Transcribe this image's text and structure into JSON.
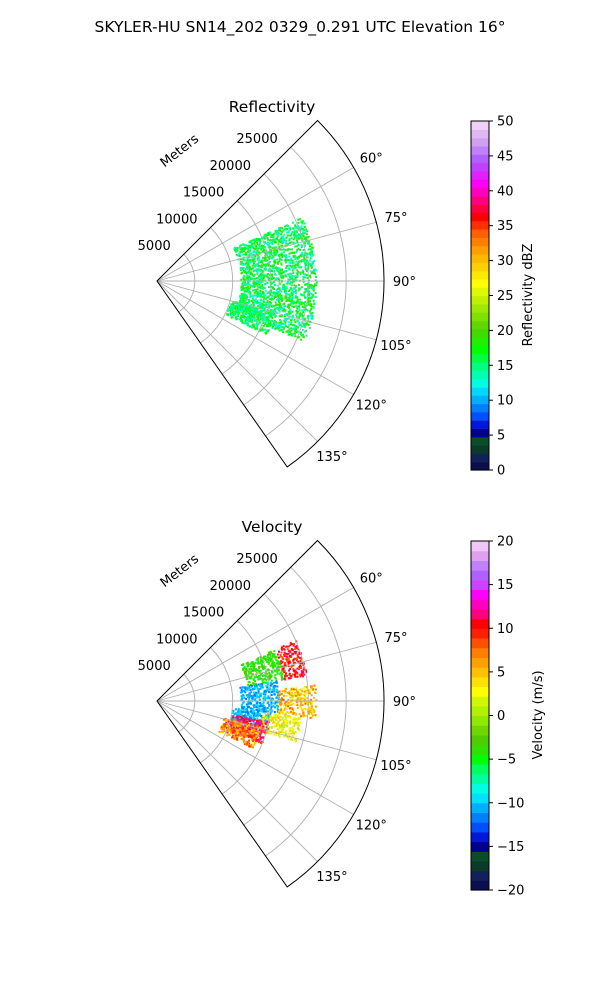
{
  "figure": {
    "title": "SKYLER-HU  SN14_202  0329_0.291 UTC Elevation 16°"
  },
  "chart_data": [
    {
      "type": "polar-sector",
      "title": "Reflectivity",
      "r_label": "Meters",
      "r_ticks": [
        5000,
        10000,
        15000,
        20000,
        25000
      ],
      "r_tick_labels": [
        "5000",
        "10000",
        "15000",
        "20000",
        "25000"
      ],
      "theta_min_deg": 45,
      "theta_max_deg": 145,
      "r_max": 30000,
      "theta_ticks": [
        60,
        75,
        90,
        105,
        120,
        135
      ],
      "theta_tick_labels": [
        "60°",
        "75°",
        "90°",
        "105°",
        "120°",
        "135°"
      ],
      "grid": true,
      "colorbar": {
        "label": "Reflectivity dBZ",
        "min": 0,
        "max": 50,
        "ticks": [
          0,
          5,
          10,
          15,
          20,
          25,
          30,
          35,
          40,
          45,
          50
        ],
        "tick_labels": [
          "0",
          "5",
          "10",
          "15",
          "20",
          "25",
          "30",
          "35",
          "40",
          "45",
          "50"
        ]
      },
      "echoes": [
        {
          "theta_range": [
            66,
            112
          ],
          "r_range": [
            11000,
            21000
          ],
          "value_range": [
            12,
            20
          ]
        },
        {
          "theta_range": [
            104,
            116
          ],
          "r_range": [
            10000,
            16000
          ],
          "value_range": [
            13,
            18
          ]
        }
      ]
    },
    {
      "type": "polar-sector",
      "title": "Velocity",
      "r_label": "Meters",
      "r_ticks": [
        5000,
        10000,
        15000,
        20000,
        25000
      ],
      "r_tick_labels": [
        "5000",
        "10000",
        "15000",
        "20000",
        "25000"
      ],
      "theta_min_deg": 45,
      "theta_max_deg": 145,
      "r_max": 30000,
      "theta_ticks": [
        60,
        75,
        90,
        105,
        120,
        135
      ],
      "theta_tick_labels": [
        "60°",
        "75°",
        "90°",
        "105°",
        "120°",
        "135°"
      ],
      "grid": true,
      "colorbar": {
        "label": "Velocity (m/s)",
        "min": -20,
        "max": 20,
        "ticks": [
          -20,
          -15,
          -10,
          -5,
          0,
          5,
          10,
          15,
          20
        ],
        "tick_labels": [
          "−20",
          "−15",
          "−10",
          "−5",
          "0",
          "5",
          "10",
          "15",
          "20"
        ]
      },
      "echoes": [
        {
          "theta_range": [
            66,
            80
          ],
          "r_range": [
            12000,
            17000
          ],
          "value_range": [
            -6,
            -2
          ]
        },
        {
          "theta_range": [
            66,
            80
          ],
          "r_range": [
            17000,
            20000
          ],
          "value_range": [
            8,
            12
          ]
        },
        {
          "theta_range": [
            80,
            95
          ],
          "r_range": [
            11000,
            16000
          ],
          "value_range": [
            -12,
            -9
          ]
        },
        {
          "theta_range": [
            84,
            96
          ],
          "r_range": [
            16000,
            21000
          ],
          "value_range": [
            2,
            8
          ]
        },
        {
          "theta_range": [
            95,
            104
          ],
          "r_range": [
            10000,
            15000
          ],
          "value_range": [
            -12,
            -9
          ]
        },
        {
          "theta_range": [
            96,
            106
          ],
          "r_range": [
            14000,
            19000
          ],
          "value_range": [
            0,
            5
          ]
        },
        {
          "theta_range": [
            100,
            112
          ],
          "r_range": [
            10000,
            15000
          ],
          "value_range": [
            8,
            14
          ]
        },
        {
          "theta_range": [
            104,
            116
          ],
          "r_range": [
            9000,
            14000
          ],
          "value_range": [
            4,
            10
          ]
        }
      ]
    }
  ]
}
